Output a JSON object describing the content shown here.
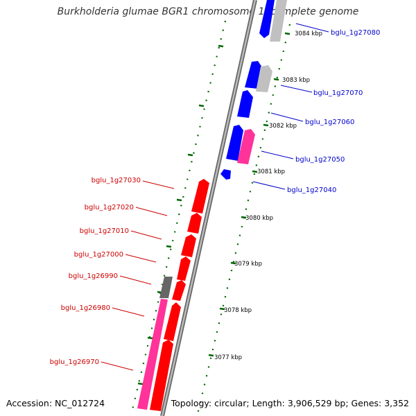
{
  "title": "Burkholderia glumae BGR1 chromosome 1, complete genome",
  "footer": {
    "accession": "Accession: NC_012724",
    "stats": "Topology: circular; Length: 3,906,529 bp; Genes: 3,352"
  },
  "colors": {
    "backbone": "#999999",
    "backbone_edge": "#666666",
    "tick": "#006600",
    "forward_gene": "#ff0000",
    "reverse_gene": "#0000ff",
    "label_forward": "#cc0000",
    "label_reverse": "#0000cc",
    "grey_gene": "#c0c0c0",
    "dark_grey_gene": "#666666",
    "pink_gene": "#ff3399"
  },
  "scale_labels": [
    "3084 kbp",
    "3083 kbp",
    "3082 kbp",
    "3081 kbp",
    "3080 kbp",
    "3079 kbp",
    "3078 kbp",
    "3077 kbp"
  ],
  "gene_labels_reverse": [
    "bglu_1g27080",
    "bglu_1g27070",
    "bglu_1g27060",
    "bglu_1g27050",
    "bglu_1g27040"
  ],
  "gene_labels_forward": [
    "bglu_1g27030",
    "bglu_1g27020",
    "bglu_1g27010",
    "bglu_1g27000",
    "bglu_1g26990",
    "bglu_1g26980",
    "bglu_1g26970"
  ]
}
